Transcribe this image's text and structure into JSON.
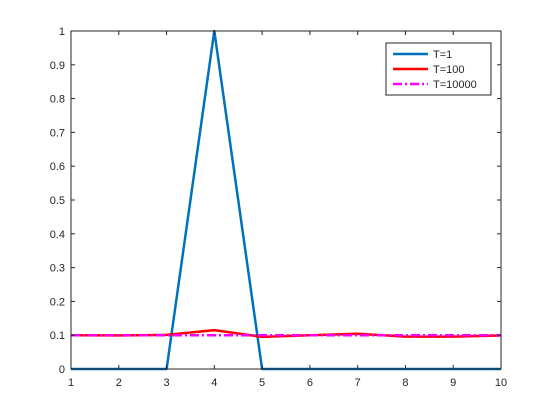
{
  "chart_data": {
    "type": "line",
    "title": "",
    "xlabel": "",
    "ylabel": "",
    "x": [
      1,
      2,
      3,
      4,
      5,
      6,
      7,
      8,
      9,
      10
    ],
    "xlim": [
      1,
      10
    ],
    "ylim": [
      0,
      1
    ],
    "xticks": [
      1,
      2,
      3,
      4,
      5,
      6,
      7,
      8,
      9,
      10
    ],
    "yticks": [
      0,
      0.1,
      0.2,
      0.3,
      0.4,
      0.5,
      0.6,
      0.7,
      0.8,
      0.9,
      1
    ],
    "grid": false,
    "legend_position": "top-right",
    "series": [
      {
        "name": "T=1",
        "color": "#0072BD",
        "style": "solid",
        "values": [
          0,
          0,
          0,
          1,
          0,
          0,
          0,
          0,
          0,
          0
        ]
      },
      {
        "name": "T=100",
        "color": "#FF0000",
        "style": "solid",
        "values": [
          0.1,
          0.099,
          0.101,
          0.115,
          0.095,
          0.1,
          0.104,
          0.096,
          0.096,
          0.099
        ]
      },
      {
        "name": "T=10000",
        "color": "#FF00FF",
        "style": "dashdot",
        "values": [
          0.1,
          0.1,
          0.1,
          0.1,
          0.1,
          0.1,
          0.1,
          0.1,
          0.1,
          0.1
        ]
      }
    ]
  }
}
